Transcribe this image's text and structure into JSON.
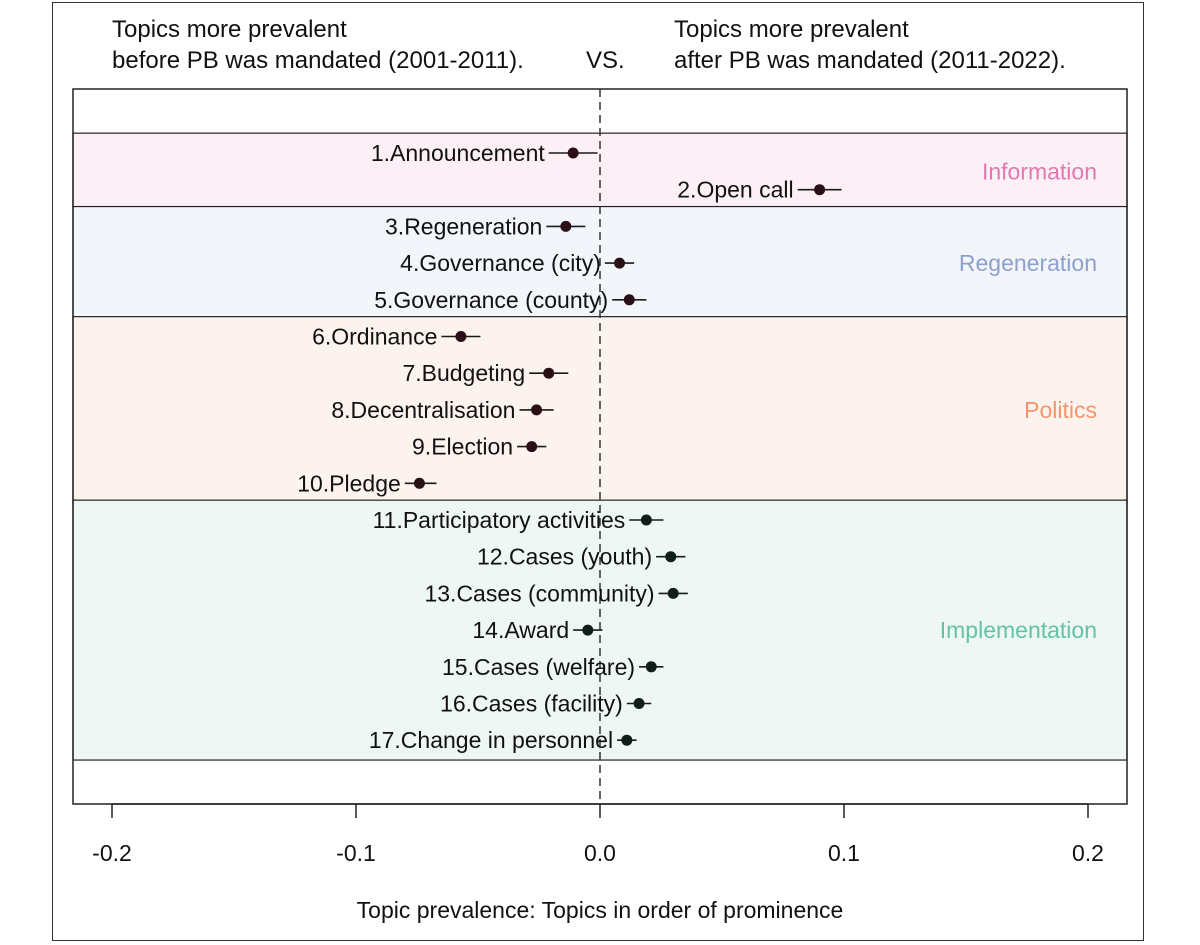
{
  "chart_data": {
    "type": "scatter",
    "header_left": [
      "Topics more prevalent",
      "before PB was mandated (2001-2011)."
    ],
    "header_center": "VS.",
    "header_right": [
      "Topics more prevalent",
      "after PB was mandated (2011-2022)."
    ],
    "xlabel": "Topic prevalence: Topics in order of prominence",
    "xlim": [
      -0.2,
      0.2
    ],
    "xticks": [
      -0.2,
      -0.1,
      0.0,
      0.1,
      0.2
    ],
    "xtick_labels": [
      "-0.2",
      "-0.1",
      "0.0",
      "0.1",
      "0.2"
    ],
    "reference_line": 0.0,
    "groups": [
      {
        "name": "Information",
        "color": "#e377b0",
        "bg": "#fcf0f6",
        "topics": [
          1,
          2
        ]
      },
      {
        "name": "Regeneration",
        "color": "#8ea1cc",
        "bg": "#f2f5fa",
        "topics": [
          3,
          4,
          5
        ]
      },
      {
        "name": "Politics",
        "color": "#f3956a",
        "bg": "#fdf3ee",
        "topics": [
          6,
          7,
          8,
          9,
          10
        ]
      },
      {
        "name": "Implementation",
        "color": "#63c4a0",
        "bg": "#eef7f3",
        "topics": [
          11,
          12,
          13,
          14,
          15,
          16,
          17
        ]
      }
    ],
    "points": [
      {
        "label": "1.Announcement",
        "value": -0.011,
        "low": -0.021,
        "high": -0.001
      },
      {
        "label": "2.Open call",
        "value": 0.09,
        "low": 0.081,
        "high": 0.099
      },
      {
        "label": "3.Regeneration",
        "value": -0.014,
        "low": -0.022,
        "high": -0.006
      },
      {
        "label": "4.Governance (city)",
        "value": 0.008,
        "low": 0.002,
        "high": 0.014
      },
      {
        "label": "5.Governance (county)",
        "value": 0.012,
        "low": 0.005,
        "high": 0.019
      },
      {
        "label": "6.Ordinance",
        "value": -0.057,
        "low": -0.065,
        "high": -0.049
      },
      {
        "label": "7.Budgeting",
        "value": -0.021,
        "low": -0.029,
        "high": -0.013
      },
      {
        "label": "8.Decentralisation",
        "value": -0.026,
        "low": -0.033,
        "high": -0.019
      },
      {
        "label": "9.Election",
        "value": -0.028,
        "low": -0.034,
        "high": -0.022
      },
      {
        "label": "10.Pledge",
        "value": -0.074,
        "low": -0.08,
        "high": -0.067
      },
      {
        "label": "11.Participatory activities",
        "value": 0.019,
        "low": 0.012,
        "high": 0.026
      },
      {
        "label": "12.Cases (youth)",
        "value": 0.029,
        "low": 0.023,
        "high": 0.035
      },
      {
        "label": "13.Cases (community)",
        "value": 0.03,
        "low": 0.024,
        "high": 0.036
      },
      {
        "label": "14.Award",
        "value": -0.005,
        "low": -0.011,
        "high": 0.001
      },
      {
        "label": "15.Cases (welfare)",
        "value": 0.021,
        "low": 0.016,
        "high": 0.026
      },
      {
        "label": "16.Cases (facility)",
        "value": 0.016,
        "low": 0.011,
        "high": 0.021
      },
      {
        "label": "17.Change in personnel",
        "value": 0.011,
        "low": 0.007,
        "high": 0.015
      }
    ]
  }
}
